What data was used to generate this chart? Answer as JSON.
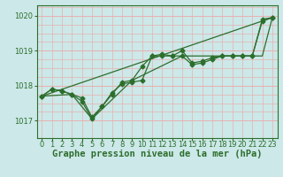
{
  "title": "Graphe pression niveau de la mer (hPa)",
  "bg_color": "#cce8e8",
  "grid_major_color": "#e8b0b0",
  "grid_minor_color": "#d4c8c8",
  "line_color": "#2d6e2d",
  "ylim": [
    1016.5,
    1020.3
  ],
  "yticks": [
    1017,
    1018,
    1019,
    1020
  ],
  "xlim": [
    -0.5,
    23.5
  ],
  "xticks": [
    0,
    1,
    2,
    3,
    4,
    5,
    6,
    7,
    8,
    9,
    10,
    11,
    12,
    13,
    14,
    15,
    16,
    17,
    18,
    19,
    20,
    21,
    22,
    23
  ],
  "line1": [
    1017.7,
    1017.9,
    1017.85,
    1017.75,
    1017.65,
    1017.1,
    1017.4,
    1017.8,
    1018.05,
    1018.1,
    1018.15,
    1018.85,
    1018.9,
    1018.85,
    1019.0,
    1018.65,
    1018.7,
    1018.8,
    1018.85,
    1018.85,
    1018.85,
    1018.85,
    1019.9,
    1019.95
  ],
  "line2": [
    1017.7,
    1017.9,
    1017.85,
    1017.75,
    1017.55,
    1017.05,
    1017.4,
    1017.75,
    1018.1,
    1018.15,
    1018.55,
    1018.85,
    1018.85,
    1018.85,
    1018.85,
    1018.6,
    1018.65,
    1018.75,
    1018.85,
    1018.85,
    1018.85,
    1018.85,
    1019.85,
    1019.95
  ],
  "line3_x": [
    0,
    22,
    23
  ],
  "line3_y": [
    1017.7,
    1019.85,
    1019.95
  ],
  "line4_x": [
    0,
    3,
    5,
    9,
    14,
    22,
    23
  ],
  "line4_y": [
    1017.7,
    1017.75,
    1017.05,
    1018.15,
    1018.85,
    1018.85,
    1019.95
  ],
  "marker": "D",
  "markersize": 2.5,
  "linewidth": 0.9,
  "xlabel_fontsize": 7.5,
  "tick_fontsize": 6.0,
  "fig_width": 3.2,
  "fig_height": 2.0,
  "dpi": 100
}
